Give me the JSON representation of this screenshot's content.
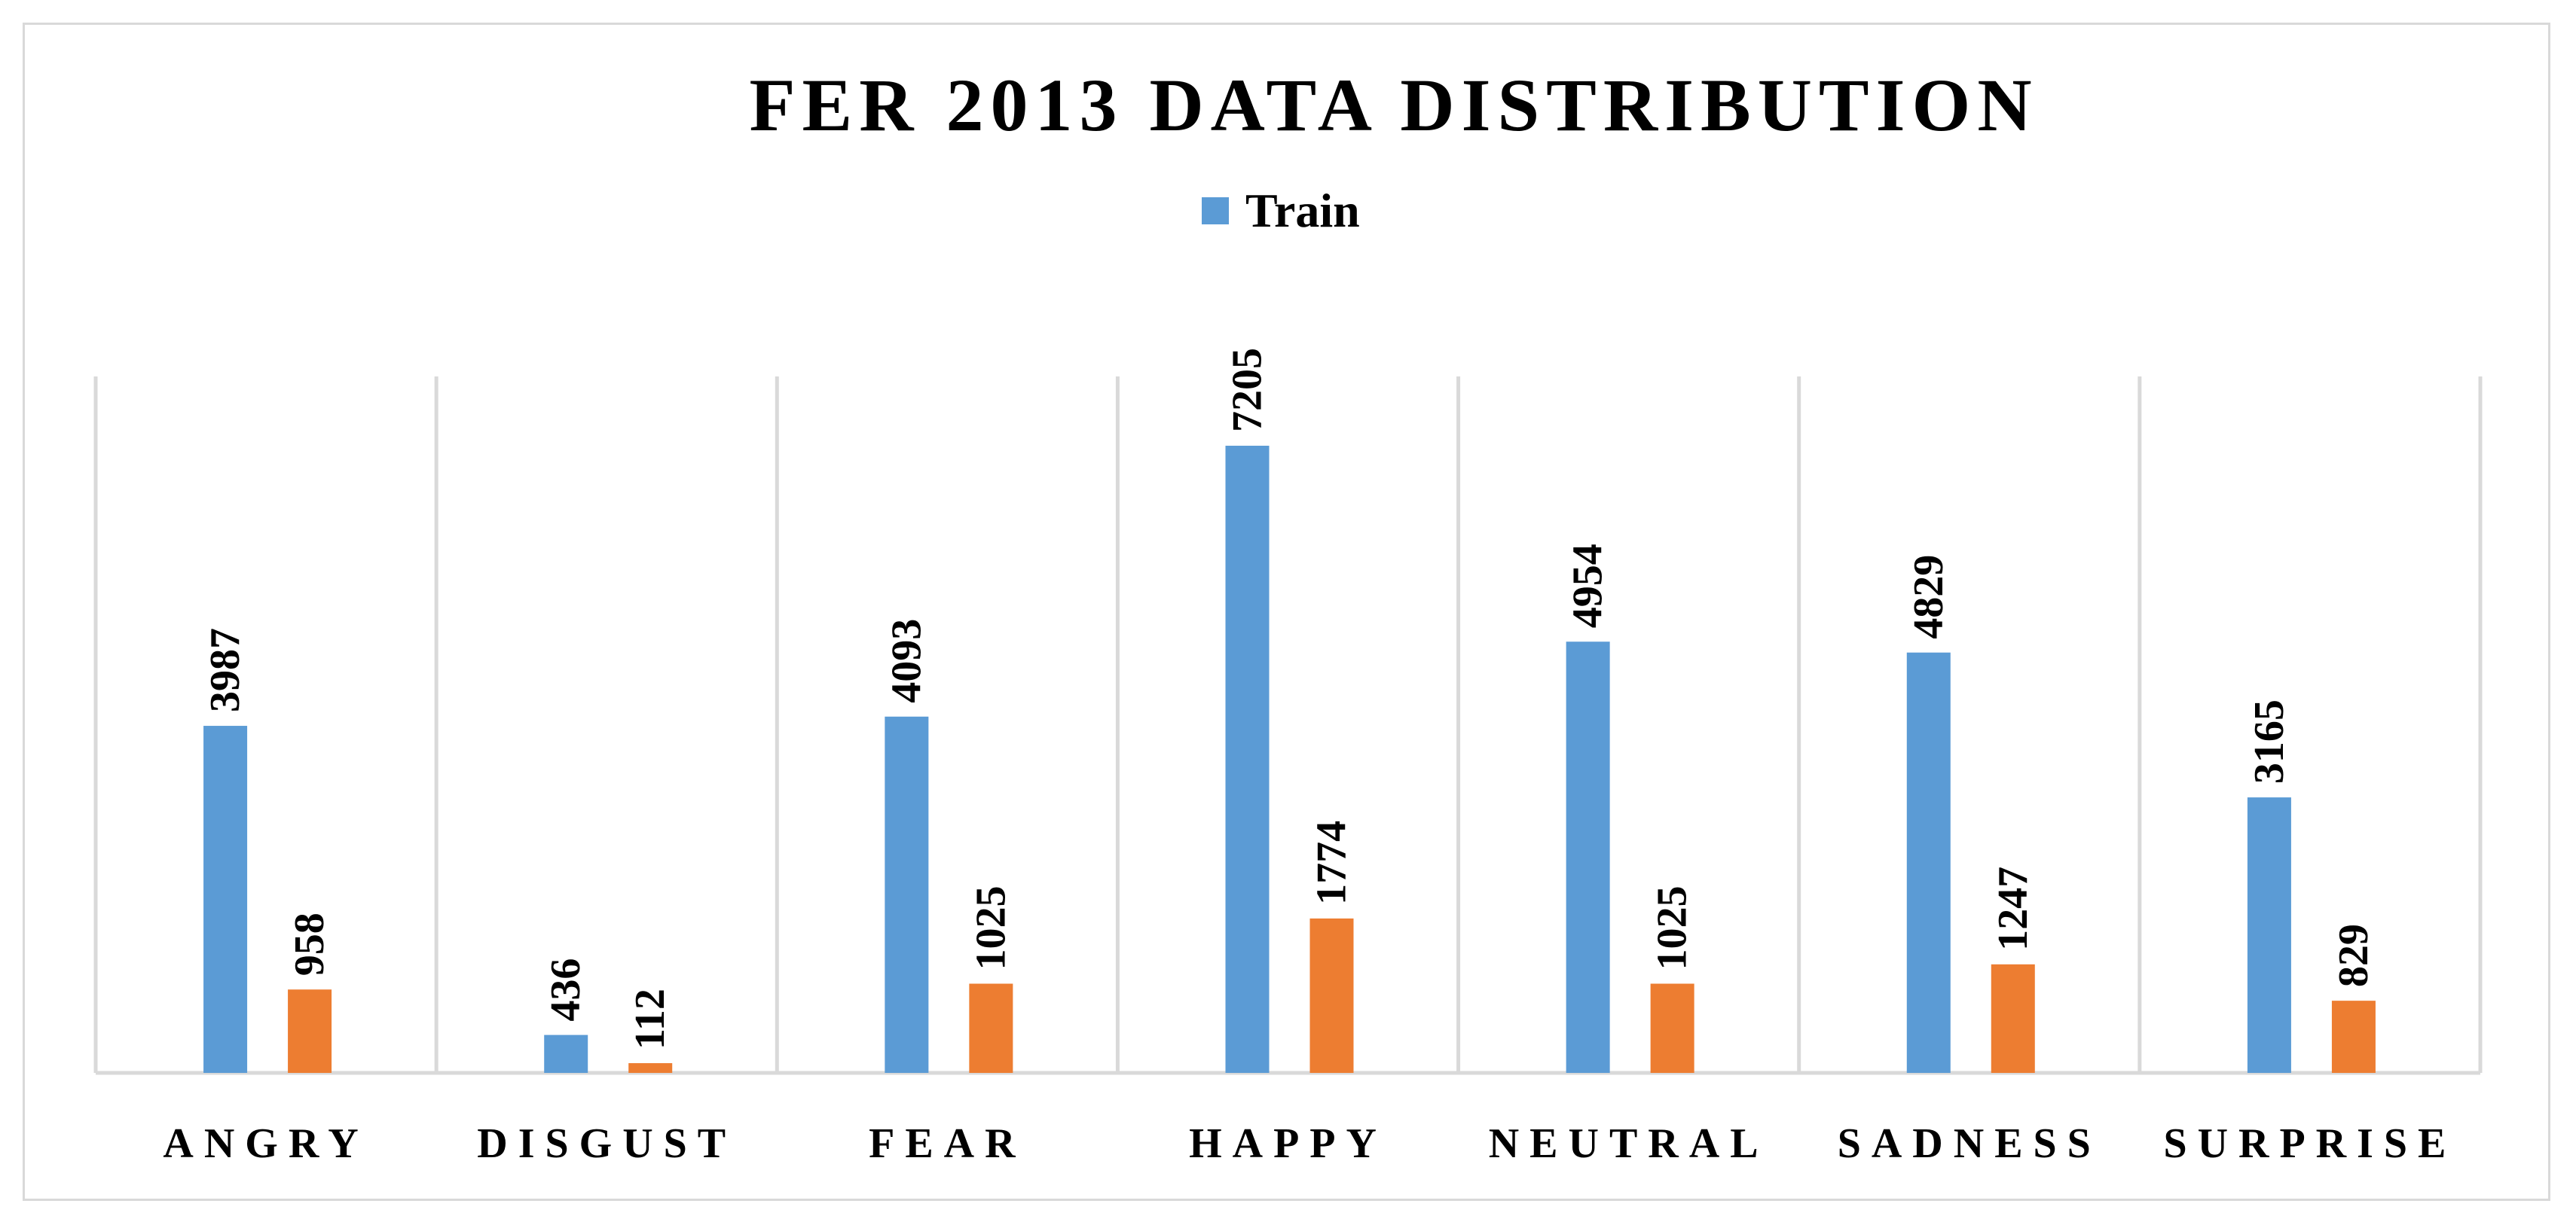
{
  "colors": {
    "train": "#5b9bd5",
    "test": "#ed7d31",
    "grid": "#d9d9d9",
    "text": "#000000"
  },
  "chart_data": {
    "type": "bar",
    "title": "FER 2013 DATA DISTRIBUTION",
    "categories": [
      "ANGRY",
      "DISGUST",
      "FEAR",
      "HAPPY",
      "NEUTRAL",
      "SADNESS",
      "SURPRISE"
    ],
    "series": [
      {
        "name": "Train",
        "values": [
          3987,
          436,
          4093,
          7205,
          4954,
          4829,
          3165
        ]
      },
      {
        "name": "",
        "values": [
          958,
          112,
          1025,
          1774,
          1025,
          1247,
          829
        ]
      }
    ],
    "legend": {
      "position": "top",
      "entries": [
        "Train"
      ]
    },
    "xlabel": "",
    "ylabel": "",
    "ylim": [
      0,
      8000
    ],
    "grid": "vertical-category-separators",
    "data_labels": true
  }
}
